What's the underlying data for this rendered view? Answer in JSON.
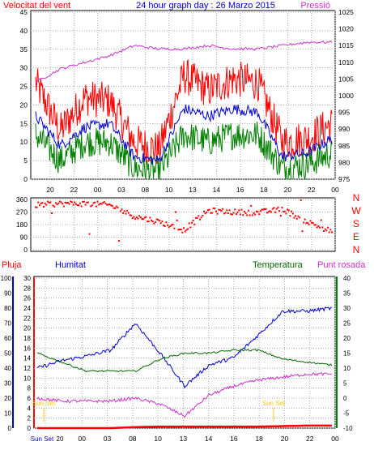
{
  "header": {
    "title": "24 hour graph day : 26 Marzo 2015",
    "left_label": "Velocitat del vent",
    "right_label": "Pressió"
  },
  "wind_panel": {
    "y_left_ticks": [
      "0",
      "5",
      "10",
      "15",
      "20",
      "25",
      "30",
      "35",
      "40",
      "45"
    ],
    "y_right_ticks": [
      "975",
      "980",
      "985",
      "990",
      "995",
      "1000",
      "1005",
      "1010",
      "1015",
      "1020",
      "1025"
    ],
    "x_ticks": [
      "20",
      "22",
      "00",
      "03",
      "08",
      "10",
      "13",
      "14",
      "16",
      "18",
      "20",
      "22",
      "00"
    ]
  },
  "direction_panel": {
    "y_ticks": [
      "360",
      "270",
      "180",
      "90",
      "0"
    ],
    "compass": [
      "N",
      "W",
      "S",
      "E",
      "N"
    ]
  },
  "climate_panel": {
    "labels": {
      "rain": "Pluja",
      "humidity": "Humitat",
      "temperature": "Temperatura",
      "dewpoint": "Punt rosada"
    },
    "humidity_ticks": [
      "0",
      "10",
      "20",
      "30",
      "40",
      "50",
      "60",
      "70",
      "80",
      "90",
      "100"
    ],
    "rain_ticks": [
      "0",
      "2",
      "4",
      "6",
      "8",
      "10",
      "12",
      "14",
      "16",
      "18",
      "20",
      "22",
      "24",
      "26",
      "28",
      "30"
    ],
    "temp_ticks": [
      "-10",
      "-5",
      "0",
      "5",
      "10",
      "15",
      "20",
      "25",
      "30",
      "35",
      "40"
    ],
    "x_ticks": [
      "Sun Set",
      "00",
      "03",
      "08",
      "10",
      "13",
      "14",
      "16",
      "18",
      "20",
      "22",
      "00"
    ],
    "x_first_tick_suffix": "20",
    "annotations": [
      "Sun Set",
      "Sun Set"
    ]
  },
  "colors": {
    "wind_gust": "#ff0000",
    "wind_avg": "#0000cc",
    "wind_low": "#008000",
    "pressure": "#cc33cc",
    "direction": "#ff0000",
    "humidity": "#0000cc",
    "temperature": "#006600",
    "dewpoint": "#cc33cc",
    "rain": "#ff0000",
    "grid": "#aaaaaa",
    "annotation": "#ffcc00"
  },
  "chart_data": [
    {
      "type": "line",
      "title": "24 hour graph day : 26 Marzo 2015",
      "y_left_label": "Velocitat del vent",
      "y_right_label": "Pressió",
      "ylim_left": [
        0,
        45
      ],
      "ylim_right": [
        975,
        1025
      ],
      "x": [
        "20",
        "22",
        "00",
        "03",
        "08",
        "10",
        "13",
        "14",
        "16",
        "18",
        "20",
        "22",
        "00"
      ],
      "series": [
        {
          "name": "gust",
          "axis": "left",
          "values": [
            26,
            13,
            22,
            21,
            10,
            8,
            28,
            24,
            27,
            26,
            10,
            11,
            15
          ]
        },
        {
          "name": "average",
          "axis": "left",
          "values": [
            17,
            9,
            14,
            15,
            6,
            5,
            19,
            17,
            19,
            18,
            6,
            7,
            11
          ]
        },
        {
          "name": "low",
          "axis": "left",
          "values": [
            12,
            5,
            10,
            10,
            3,
            2,
            12,
            10,
            12,
            12,
            3,
            4,
            7
          ]
        },
        {
          "name": "pressure",
          "axis": "right",
          "values": [
            1004,
            1008,
            1010,
            1012,
            1015,
            1014,
            1014,
            1015,
            1014,
            1014,
            1015,
            1016,
            1016
          ]
        }
      ]
    },
    {
      "type": "scatter",
      "title": "",
      "ylim": [
        0,
        360
      ],
      "x": [
        "20",
        "22",
        "00",
        "03",
        "08",
        "10",
        "13",
        "14",
        "16",
        "18",
        "20",
        "22",
        "00"
      ],
      "series": [
        {
          "name": "direction",
          "values": [
            320,
            330,
            330,
            320,
            240,
            200,
            140,
            280,
            270,
            265,
            290,
            200,
            130
          ]
        }
      ]
    },
    {
      "type": "line",
      "title": "",
      "x": [
        "20",
        "22",
        "00",
        "03",
        "08",
        "10",
        "13",
        "14",
        "16",
        "18",
        "20",
        "22",
        "00"
      ],
      "ylim_humidity": [
        0,
        100
      ],
      "ylim_rain": [
        0,
        30
      ],
      "ylim_temp": [
        -10,
        40
      ],
      "series": [
        {
          "name": "Humitat",
          "axis": "humidity",
          "values": [
            40,
            45,
            48,
            52,
            70,
            50,
            28,
            42,
            47,
            62,
            78,
            78,
            80
          ]
        },
        {
          "name": "Temperatura",
          "axis": "temp",
          "values": [
            15,
            12,
            9,
            9,
            9,
            13,
            15,
            15,
            16,
            16,
            13,
            12,
            11
          ]
        },
        {
          "name": "Punt rosada",
          "axis": "temp",
          "values": [
            0,
            -1,
            -1,
            -1,
            0,
            -2,
            -6,
            1,
            4,
            6,
            7,
            8,
            8
          ]
        },
        {
          "name": "Pluja",
          "axis": "rain",
          "values": [
            0,
            0,
            0,
            0,
            0.2,
            0.3,
            0.3,
            0.3,
            0.3,
            0.3,
            0.4,
            0.5,
            0.5
          ]
        }
      ]
    }
  ]
}
